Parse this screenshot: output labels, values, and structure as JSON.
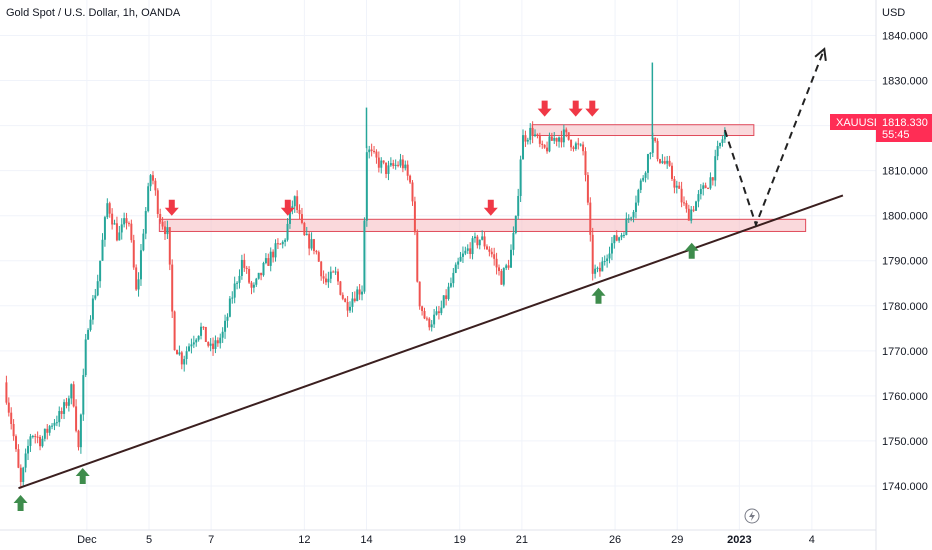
{
  "header": {
    "title": "Gold Spot / U.S. Dollar, 1h, OANDA",
    "currency": "USD"
  },
  "colors": {
    "bull": "#26a69a",
    "bear": "#ef5350",
    "tag": "#ff2d55",
    "zone_fill": "#f6b9bf",
    "zone_stroke": "#e04a5a",
    "trend": "#3b1f1f",
    "arrow_up": "#3e8c4c",
    "arrow_down": "#f03846"
  },
  "price_tag": {
    "symbol": "XAUUSD",
    "price": "1818.330",
    "countdown": "55:45"
  },
  "chart_data": {
    "type": "candlestick",
    "title": "Gold Spot / U.S. Dollar, 1h, OANDA",
    "ylim": [
      1732,
      1843
    ],
    "y_ticks": [
      "1740.000",
      "1750.000",
      "1760.000",
      "1770.000",
      "1780.000",
      "1790.000",
      "1800.000",
      "1810.000",
      "1820.000",
      "1830.000",
      "1840.000"
    ],
    "xlim": [
      0,
      42
    ],
    "x_ticks": [
      {
        "label": "Dec",
        "x": 4
      },
      {
        "label": "5",
        "x": 7
      },
      {
        "label": "7",
        "x": 10
      },
      {
        "label": "12",
        "x": 14.5
      },
      {
        "label": "14",
        "x": 17.5
      },
      {
        "label": "19",
        "x": 22
      },
      {
        "label": "21",
        "x": 25
      },
      {
        "label": "26",
        "x": 29.5
      },
      {
        "label": "29",
        "x": 32.5
      },
      {
        "label": "2023",
        "x": 35.5,
        "bold": true
      },
      {
        "label": "4",
        "x": 39
      }
    ],
    "path": [
      [
        0,
        1763
      ],
      [
        0.4,
        1753
      ],
      [
        0.8,
        1740
      ],
      [
        1.3,
        1752
      ],
      [
        1.8,
        1750
      ],
      [
        2.3,
        1754
      ],
      [
        2.8,
        1756
      ],
      [
        3.3,
        1762
      ],
      [
        3.6,
        1748
      ],
      [
        4.0,
        1775
      ],
      [
        4.5,
        1785
      ],
      [
        5.0,
        1803
      ],
      [
        5.5,
        1795
      ],
      [
        6.0,
        1800
      ],
      [
        6.4,
        1782
      ],
      [
        6.7,
        1796
      ],
      [
        7.1,
        1810
      ],
      [
        7.5,
        1800
      ],
      [
        7.9,
        1796
      ],
      [
        8.2,
        1772
      ],
      [
        8.6,
        1768
      ],
      [
        9.0,
        1772
      ],
      [
        9.5,
        1775
      ],
      [
        10.0,
        1770
      ],
      [
        10.6,
        1774
      ],
      [
        11.0,
        1782
      ],
      [
        11.5,
        1790
      ],
      [
        12.0,
        1783
      ],
      [
        12.5,
        1788
      ],
      [
        13.0,
        1792
      ],
      [
        13.5,
        1794
      ],
      [
        14.0,
        1804
      ],
      [
        14.5,
        1795
      ],
      [
        15.0,
        1793
      ],
      [
        15.5,
        1785
      ],
      [
        16.0,
        1787
      ],
      [
        16.5,
        1780
      ],
      [
        17.0,
        1783
      ],
      [
        17.3,
        1784
      ],
      [
        17.5,
        1815
      ],
      [
        17.8,
        1813
      ],
      [
        18.5,
        1810
      ],
      [
        19.2,
        1812
      ],
      [
        19.7,
        1806
      ],
      [
        20.0,
        1782
      ],
      [
        20.4,
        1776
      ],
      [
        21.0,
        1778
      ],
      [
        21.5,
        1784
      ],
      [
        22.0,
        1790
      ],
      [
        22.5,
        1793
      ],
      [
        23.0,
        1795
      ],
      [
        23.5,
        1792
      ],
      [
        24.0,
        1786
      ],
      [
        24.4,
        1790
      ],
      [
        24.7,
        1798
      ],
      [
        25.0,
        1817
      ],
      [
        25.5,
        1819
      ],
      [
        26.0,
        1814
      ],
      [
        26.5,
        1817
      ],
      [
        27.0,
        1818
      ],
      [
        27.5,
        1816
      ],
      [
        28.0,
        1814
      ],
      [
        28.4,
        1788
      ],
      [
        28.7,
        1787
      ],
      [
        29.2,
        1793
      ],
      [
        29.8,
        1796
      ],
      [
        30.3,
        1801
      ],
      [
        30.8,
        1808
      ],
      [
        31.3,
        1817
      ],
      [
        31.6,
        1813
      ],
      [
        32.0,
        1811
      ],
      [
        32.5,
        1806
      ],
      [
        33.0,
        1800
      ],
      [
        33.4,
        1803
      ],
      [
        33.8,
        1806
      ],
      [
        34.2,
        1809
      ],
      [
        34.5,
        1815
      ],
      [
        34.8,
        1818.33
      ]
    ],
    "spikes": [
      {
        "x": 17.5,
        "high": 1824
      },
      {
        "x": 31.3,
        "high": 1834
      }
    ],
    "zones": [
      {
        "x0": 7.5,
        "x1": 38.7,
        "y0": 1796.5,
        "y1": 1799.2
      },
      {
        "x0": 25.5,
        "x1": 36.2,
        "y0": 1817.8,
        "y1": 1820.2
      }
    ],
    "trendline": {
      "from": [
        0.7,
        1739.5
      ],
      "to": [
        40.5,
        1804.5
      ]
    },
    "projection": [
      [
        34.8,
        1819
      ],
      [
        36.3,
        1798
      ],
      [
        39.6,
        1837
      ]
    ],
    "arrows_down": [
      [
        8.1,
        1800
      ],
      [
        13.7,
        1800
      ],
      [
        23.5,
        1800
      ],
      [
        26.1,
        1822
      ],
      [
        27.6,
        1822
      ],
      [
        28.4,
        1822
      ]
    ],
    "arrows_up": [
      [
        0.8,
        1738
      ],
      [
        3.8,
        1744
      ],
      [
        28.7,
        1784
      ],
      [
        33.2,
        1794
      ]
    ]
  }
}
